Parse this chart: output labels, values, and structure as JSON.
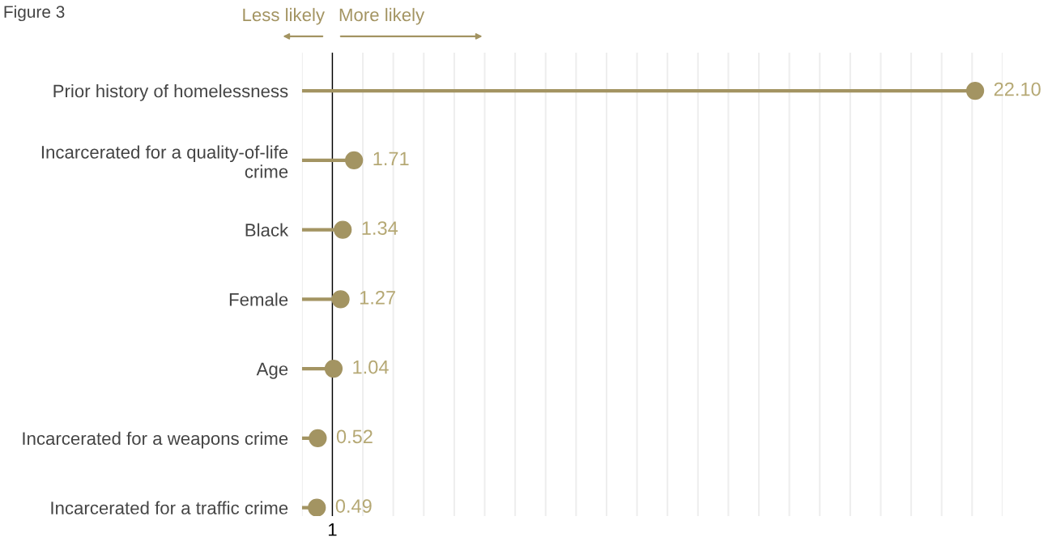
{
  "chart_data": {
    "type": "lollipop",
    "orientation": "horizontal",
    "title": "Figure 3",
    "categories": [
      "Prior history of homelessness",
      "Incarcerated for a quality-of-life\ncrime",
      "Black",
      "Female",
      "Age",
      "Incarcerated for a weapons crime",
      "Incarcerated for a traffic crime"
    ],
    "values": [
      22.1,
      1.71,
      1.34,
      1.27,
      1.04,
      0.52,
      0.49
    ],
    "value_labels": [
      "22.10",
      "1.71",
      "1.34",
      "1.27",
      "1.04",
      "0.52",
      "0.49"
    ],
    "color": "#a39462",
    "xlim": [
      0,
      23
    ],
    "grid": "x",
    "marker": "circle",
    "ref_lines": [
      {
        "axis": "x",
        "value": 1,
        "label": null,
        "color": "#000000"
      }
    ],
    "annotations": [
      "Less likely",
      "More likely",
      {
        "text": "1",
        "x": 1
      }
    ]
  }
}
